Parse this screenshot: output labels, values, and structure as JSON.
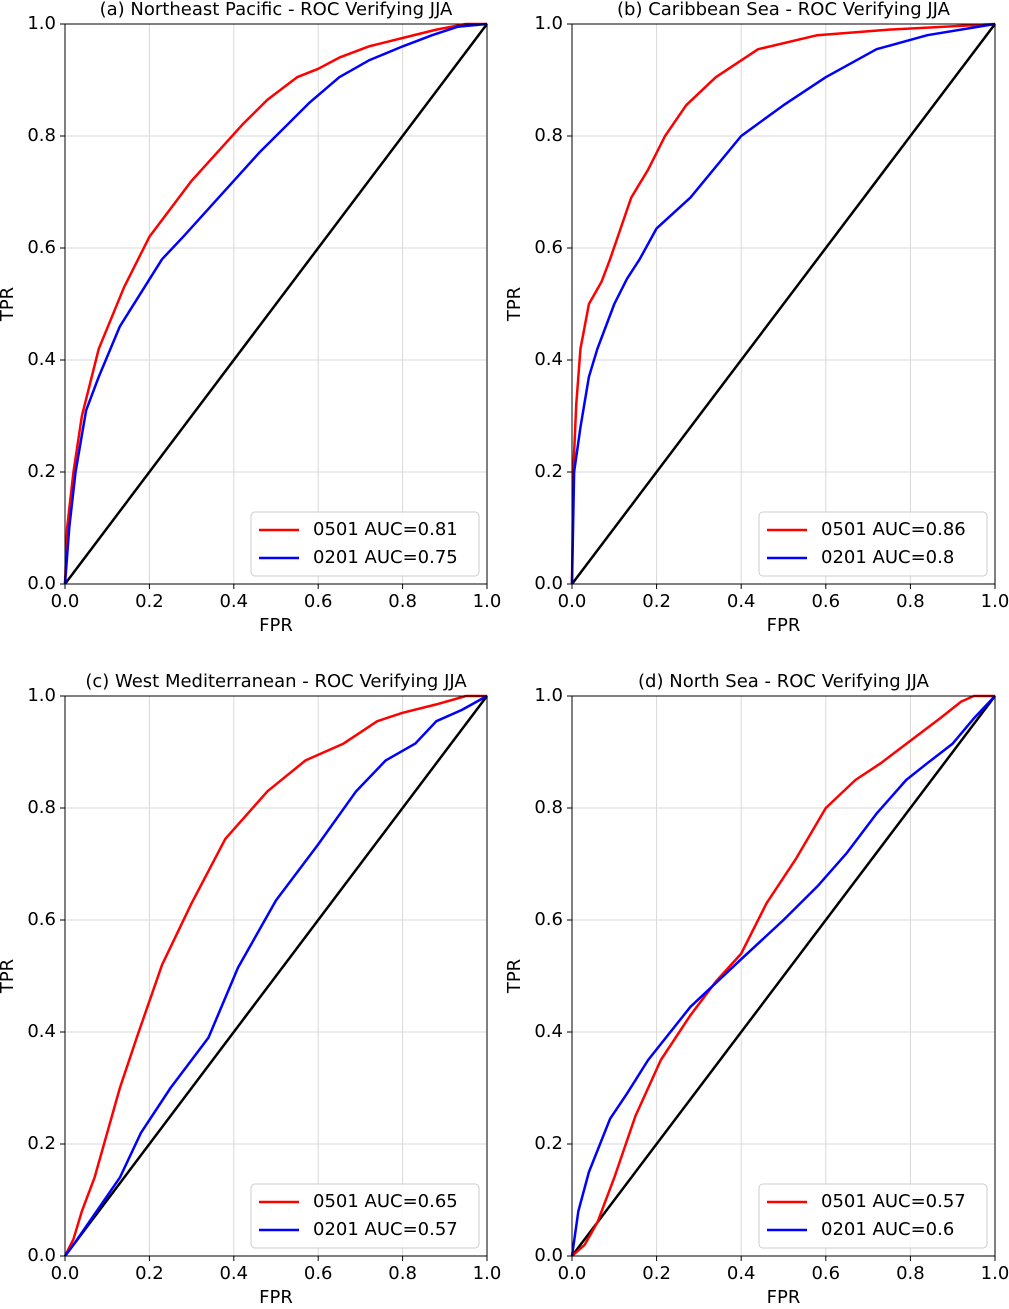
{
  "chart_data": [
    {
      "type": "line",
      "title": "(a) Northeast Pacific - ROC Verifying JJA",
      "xlabel": "FPR",
      "ylabel": "TPR",
      "xlim": [
        0,
        1
      ],
      "ylim": [
        0,
        1
      ],
      "xticks": [
        {
          "value": 0,
          "label": "0.0"
        },
        0.2,
        0.4,
        0.6,
        0.8,
        {
          "value": 1,
          "label": "1.0"
        }
      ],
      "yticks": [
        {
          "value": 0,
          "label": "0.0"
        },
        0.2,
        0.4,
        0.6,
        0.8,
        {
          "value": 1,
          "label": "1.0"
        }
      ],
      "grid": true,
      "legend": "lower right",
      "diagonal_color": "#000000",
      "series": [
        {
          "name": "0501 AUC=0.81",
          "color": "#ff0000",
          "x": [
            0,
            0.005,
            0.02,
            0.04,
            0.08,
            0.14,
            0.2,
            0.25,
            0.3,
            0.36,
            0.42,
            0.48,
            0.55,
            0.6,
            0.65,
            0.72,
            0.8,
            0.88,
            0.95,
            1
          ],
          "values": [
            0,
            0.1,
            0.2,
            0.3,
            0.42,
            0.53,
            0.62,
            0.67,
            0.72,
            0.77,
            0.82,
            0.865,
            0.905,
            0.92,
            0.94,
            0.96,
            0.975,
            0.99,
            1,
            1
          ]
        },
        {
          "name": "0201 AUC=0.75",
          "color": "#0000ff",
          "x": [
            0,
            0.01,
            0.025,
            0.05,
            0.08,
            0.13,
            0.18,
            0.23,
            0.28,
            0.34,
            0.4,
            0.46,
            0.52,
            0.58,
            0.65,
            0.72,
            0.8,
            0.87,
            0.93,
            1
          ],
          "values": [
            0,
            0.1,
            0.2,
            0.31,
            0.37,
            0.46,
            0.52,
            0.58,
            0.62,
            0.67,
            0.72,
            0.77,
            0.815,
            0.86,
            0.905,
            0.935,
            0.96,
            0.98,
            0.995,
            1
          ]
        }
      ]
    },
    {
      "type": "line",
      "title": "(b) Caribbean Sea - ROC Verifying JJA",
      "xlabel": "FPR",
      "ylabel": "TPR",
      "xlim": [
        0,
        1
      ],
      "ylim": [
        0,
        1
      ],
      "xticks": [
        {
          "value": 0,
          "label": "0.0"
        },
        0.2,
        0.4,
        0.6,
        0.8,
        {
          "value": 1,
          "label": "1.0"
        }
      ],
      "yticks": [
        {
          "value": 0,
          "label": "0.0"
        },
        0.2,
        0.4,
        0.6,
        0.8,
        {
          "value": 1,
          "label": "1.0"
        }
      ],
      "grid": true,
      "legend": "lower right",
      "diagonal_color": "#000000",
      "series": [
        {
          "name": "0501 AUC=0.86",
          "color": "#ff0000",
          "x": [
            0,
            0.003,
            0.01,
            0.02,
            0.04,
            0.07,
            0.09,
            0.14,
            0.18,
            0.22,
            0.27,
            0.34,
            0.44,
            0.58,
            0.75,
            0.88,
            1
          ],
          "values": [
            0,
            0.2,
            0.32,
            0.42,
            0.5,
            0.54,
            0.58,
            0.69,
            0.74,
            0.8,
            0.855,
            0.905,
            0.955,
            0.98,
            0.99,
            0.995,
            1
          ]
        },
        {
          "name": "0201 AUC=0.8",
          "color": "#0000ff",
          "x": [
            0,
            0.005,
            0.02,
            0.04,
            0.06,
            0.1,
            0.13,
            0.16,
            0.2,
            0.28,
            0.4,
            0.5,
            0.6,
            0.72,
            0.84,
            1
          ],
          "values": [
            0,
            0.2,
            0.28,
            0.37,
            0.42,
            0.5,
            0.545,
            0.58,
            0.635,
            0.69,
            0.8,
            0.855,
            0.905,
            0.955,
            0.98,
            1
          ]
        }
      ]
    },
    {
      "type": "line",
      "title": "(c) West Mediterranean - ROC Verifying JJA",
      "xlabel": "FPR",
      "ylabel": "TPR",
      "xlim": [
        0,
        1
      ],
      "ylim": [
        0,
        1
      ],
      "xticks": [
        {
          "value": 0,
          "label": "0.0"
        },
        0.2,
        0.4,
        0.6,
        0.8,
        {
          "value": 1,
          "label": "1.0"
        }
      ],
      "yticks": [
        {
          "value": 0,
          "label": "0.0"
        },
        0.2,
        0.4,
        0.6,
        0.8,
        {
          "value": 1,
          "label": "1.0"
        }
      ],
      "grid": true,
      "legend": "lower right",
      "diagonal_color": "#000000",
      "series": [
        {
          "name": "0501 AUC=0.65",
          "color": "#ff0000",
          "x": [
            0,
            0.02,
            0.04,
            0.07,
            0.1,
            0.13,
            0.17,
            0.23,
            0.3,
            0.38,
            0.48,
            0.57,
            0.66,
            0.74,
            0.8,
            0.88,
            0.95,
            1
          ],
          "values": [
            0,
            0.03,
            0.08,
            0.14,
            0.22,
            0.3,
            0.39,
            0.52,
            0.63,
            0.745,
            0.83,
            0.885,
            0.915,
            0.955,
            0.97,
            0.985,
            1,
            1
          ]
        },
        {
          "name": "0201 AUC=0.57",
          "color": "#0000ff",
          "x": [
            0,
            0.02,
            0.13,
            0.18,
            0.25,
            0.34,
            0.41,
            0.5,
            0.6,
            0.69,
            0.76,
            0.83,
            0.88,
            0.94,
            1
          ],
          "values": [
            0,
            0.02,
            0.14,
            0.22,
            0.3,
            0.39,
            0.515,
            0.635,
            0.735,
            0.83,
            0.885,
            0.915,
            0.955,
            0.975,
            1
          ]
        }
      ]
    },
    {
      "type": "line",
      "title": "(d) North Sea - ROC Verifying JJA",
      "xlabel": "FPR",
      "ylabel": "TPR",
      "xlim": [
        0,
        1
      ],
      "ylim": [
        0,
        1
      ],
      "xticks": [
        {
          "value": 0,
          "label": "0.0"
        },
        0.2,
        0.4,
        0.6,
        0.8,
        {
          "value": 1,
          "label": "1.0"
        }
      ],
      "yticks": [
        {
          "value": 0,
          "label": "0.0"
        },
        0.2,
        0.4,
        0.6,
        0.8,
        {
          "value": 1,
          "label": "1.0"
        }
      ],
      "grid": true,
      "legend": "lower right",
      "diagonal_color": "#000000",
      "series": [
        {
          "name": "0501 AUC=0.57",
          "color": "#ff0000",
          "x": [
            0,
            0.03,
            0.06,
            0.1,
            0.15,
            0.21,
            0.28,
            0.34,
            0.4,
            0.46,
            0.53,
            0.6,
            0.67,
            0.73,
            0.8,
            0.87,
            0.92,
            0.95,
            1
          ],
          "values": [
            0,
            0.02,
            0.06,
            0.14,
            0.25,
            0.35,
            0.43,
            0.49,
            0.54,
            0.63,
            0.71,
            0.8,
            0.85,
            0.88,
            0.92,
            0.96,
            0.99,
            1,
            1
          ]
        },
        {
          "name": "0201 AUC=0.6",
          "color": "#0000ff",
          "x": [
            0,
            0.015,
            0.04,
            0.09,
            0.13,
            0.18,
            0.28,
            0.4,
            0.5,
            0.58,
            0.65,
            0.72,
            0.79,
            0.84,
            0.9,
            0.95,
            1
          ],
          "values": [
            0,
            0.08,
            0.15,
            0.245,
            0.29,
            0.35,
            0.445,
            0.53,
            0.6,
            0.66,
            0.72,
            0.79,
            0.85,
            0.88,
            0.915,
            0.96,
            1
          ]
        }
      ]
    }
  ]
}
